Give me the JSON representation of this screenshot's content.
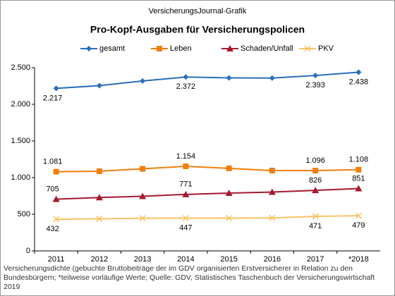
{
  "chart_data": {
    "type": "line",
    "source": "VersicherungsJournal-Grafik",
    "title": "Pro-Kopf-Ausgaben  für Versicherungspolicen",
    "footnote": "Versicherungsdichte (gebuchte Bruttobeiträge der im GDV organisierten Erstversicherer in Relation zu den Bundesbürgern; *teilweise vorläufige Werte; Quelle: GDV, Statistisches Taschenbuch der Versicherungswirtschaft 2019",
    "categories": [
      "2011",
      "2012",
      "2013",
      "2014",
      "2015",
      "2016",
      "2017",
      "*2018"
    ],
    "series": [
      {
        "name": "gesamt",
        "color": "#2a6ebb",
        "marker": "diamond",
        "values": [
          2217,
          2255,
          2318,
          2372,
          2360,
          2358,
          2393,
          2438
        ],
        "value_labels": [
          "2.217",
          null,
          null,
          "2.372",
          null,
          null,
          "2.393",
          "2.438"
        ]
      },
      {
        "name": "Leben",
        "color": "#f07f09",
        "marker": "square",
        "values": [
          1081,
          1087,
          1120,
          1154,
          1126,
          1096,
          1096,
          1108
        ],
        "value_labels": [
          "1.081",
          null,
          null,
          "1.154",
          null,
          null,
          "1.096",
          "1.108"
        ]
      },
      {
        "name": "Schaden/Unfall",
        "color": "#a6192e",
        "marker": "triangle",
        "values": [
          705,
          728,
          745,
          771,
          788,
          803,
          826,
          851
        ],
        "value_labels": [
          "705",
          null,
          null,
          "771",
          null,
          null,
          "826",
          "851"
        ]
      },
      {
        "name": "PKV",
        "color": "#f9c363",
        "marker": "x",
        "values": [
          432,
          438,
          446,
          447,
          447,
          450,
          471,
          479
        ],
        "value_labels": [
          "432",
          null,
          null,
          "447",
          null,
          null,
          "471",
          "479"
        ]
      }
    ],
    "ylim": [
      0,
      2500
    ],
    "yticks": [
      0,
      500,
      {
        "value": 1000,
        "label": "1.000"
      },
      {
        "value": 1500,
        "label": "1.500"
      },
      {
        "value": 2000,
        "label": "2.000"
      },
      {
        "value": 2500,
        "label": "2.500"
      }
    ],
    "grid": false
  }
}
